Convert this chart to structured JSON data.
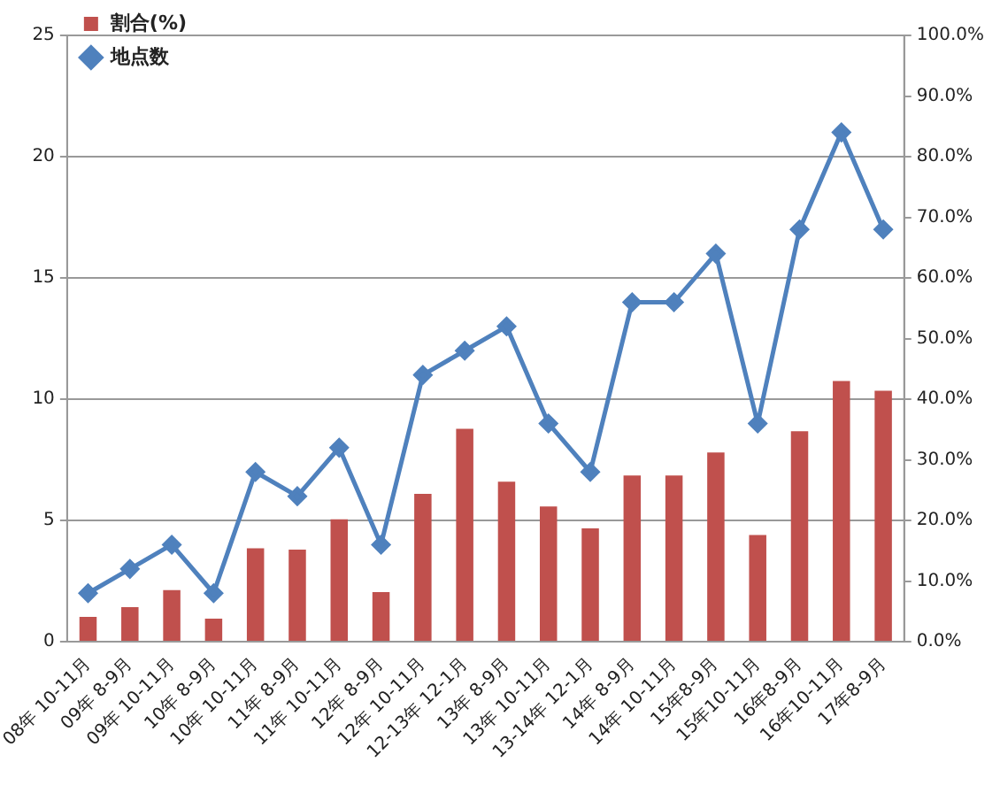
{
  "chart_data": {
    "type": "bar",
    "categories": [
      "08年 10-11月",
      "09年 8-9月",
      "09年 10-11月",
      "10年 8-9月",
      "10年 10-11月",
      "11年 8-9月",
      "11年 10-11月",
      "12年 8-9月",
      "12年 10-11月",
      "12-13年 12-1月",
      "13年 8-9月",
      "13年 10-11月",
      "13-14年 12-1月",
      "14年 8-9月",
      "14年 10-11月",
      "15年8-9月",
      "15年10-11月",
      "16年8-9月",
      "16年10-11月",
      "17年8-9月"
    ],
    "series": [
      {
        "name": "割合(%)",
        "axis": "y2",
        "color": "#c0504d",
        "values": [
          4.1,
          5.7,
          8.5,
          3.8,
          15.4,
          15.2,
          20.2,
          8.2,
          24.4,
          35.1,
          26.4,
          22.3,
          18.7,
          27.4,
          27.4,
          31.2,
          17.6,
          34.7,
          43.0,
          41.4
        ]
      },
      {
        "name": "地点数",
        "type": "line",
        "axis": "y",
        "color": "#4f81bd",
        "marker": "diamond",
        "values": [
          2,
          3,
          4,
          2,
          7,
          6,
          8,
          4,
          11,
          12,
          13,
          9,
          7,
          14,
          14,
          16,
          9,
          17,
          21,
          17
        ]
      }
    ],
    "ylim": [
      0,
      25
    ],
    "yticks": [
      0,
      5,
      10,
      15,
      20,
      25
    ],
    "y2lim": [
      0,
      100
    ],
    "y2ticks": [
      {
        "value": 0,
        "label": "0.0%"
      },
      {
        "value": 10,
        "label": "10.0%"
      },
      {
        "value": 20,
        "label": "20.0%"
      },
      {
        "value": 30,
        "label": "30.0%"
      },
      {
        "value": 40,
        "label": "40.0%"
      },
      {
        "value": 50,
        "label": "50.0%"
      },
      {
        "value": 60,
        "label": "60.0%"
      },
      {
        "value": 70,
        "label": "70.0%"
      },
      {
        "value": 80,
        "label": "80.0%"
      },
      {
        "value": 90,
        "label": "90.0%"
      },
      {
        "value": 100,
        "label": "100.0%"
      }
    ],
    "grid": "y",
    "legend": "top left"
  }
}
